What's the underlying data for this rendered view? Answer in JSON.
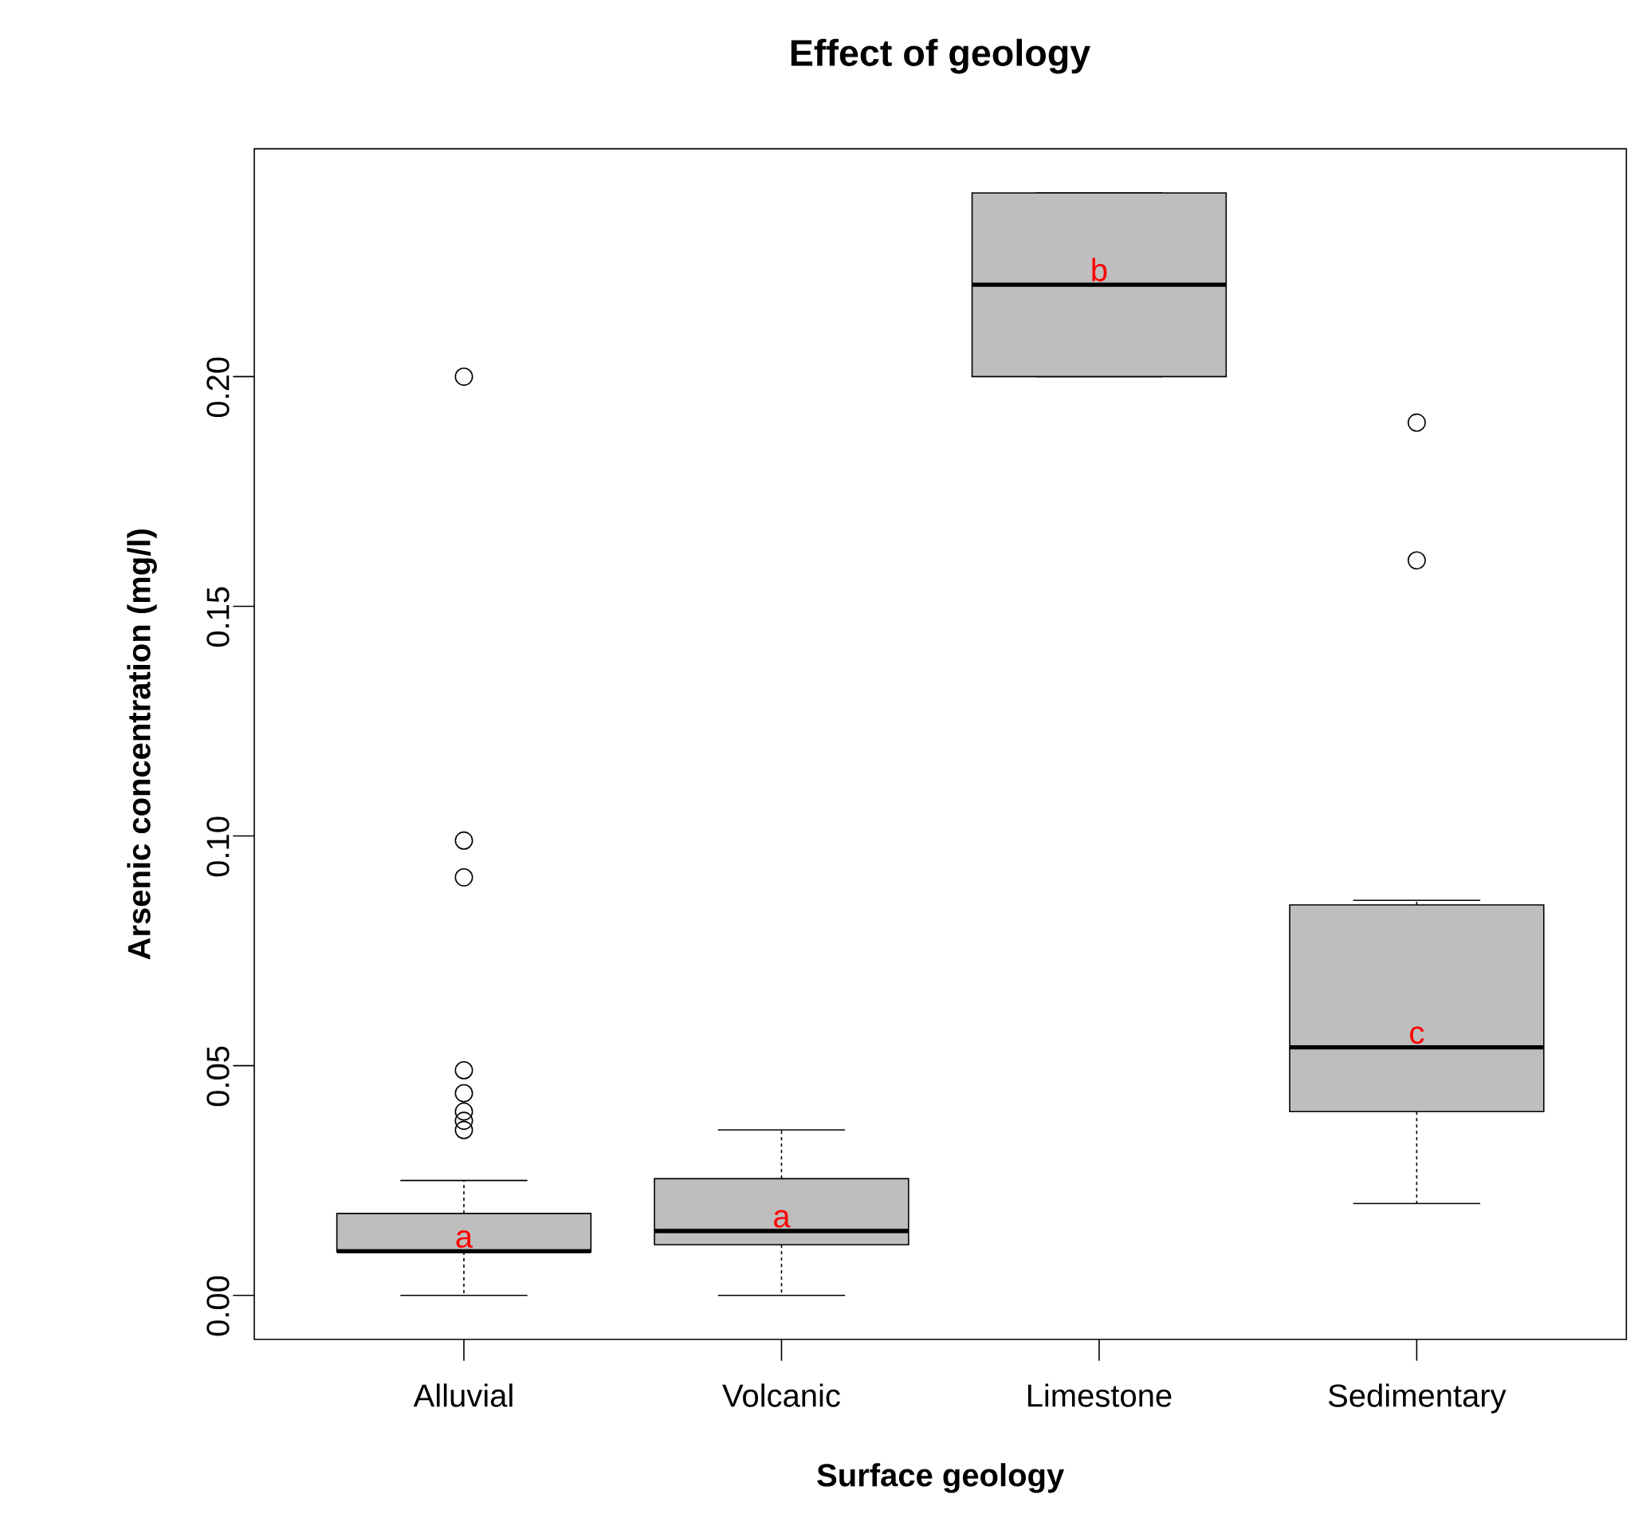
{
  "chart_data": {
    "type": "box",
    "title": "Effect of geology",
    "xlabel": "Surface geology",
    "ylabel": "Arsenic concentration (mg/l)",
    "categories": [
      "Alluvial",
      "Volcanic",
      "Limestone",
      "Sedimentary"
    ],
    "color": "#bebebe",
    "marker": "circle",
    "grid": false,
    "boxes": [
      {
        "low": 0,
        "q1": 0.0095,
        "median": 0.0096,
        "q3": 0.0178,
        "high": 0.025,
        "outliers": [
          0.2,
          0.099,
          0.091,
          0.049,
          0.044,
          0.04,
          0.038,
          0.036
        ]
      },
      {
        "low": 0,
        "q1": 0.011,
        "median": 0.014,
        "q3": 0.0254,
        "high": 0.036
      },
      {
        "low": 0.2,
        "q1": 0.2,
        "median": 0.22,
        "q3": 0.24,
        "high": 0.24
      },
      {
        "low": 0.02,
        "q1": 0.04,
        "median": 0.054,
        "q3": 0.085,
        "high": 0.086,
        "outliers": [
          0.19,
          0.16
        ]
      }
    ],
    "ylim": [
      -0.0096,
      0.2496
    ],
    "yticks": [
      {
        "value": 0,
        "label": "0.00"
      },
      {
        "value": 0.05,
        "label": "0.05"
      },
      {
        "value": 0.1,
        "label": "0.10"
      },
      {
        "value": 0.15,
        "label": "0.15"
      },
      {
        "value": 0.2,
        "label": "0.20"
      }
    ],
    "annotations": [
      "a",
      "a",
      "b",
      "c"
    ]
  }
}
